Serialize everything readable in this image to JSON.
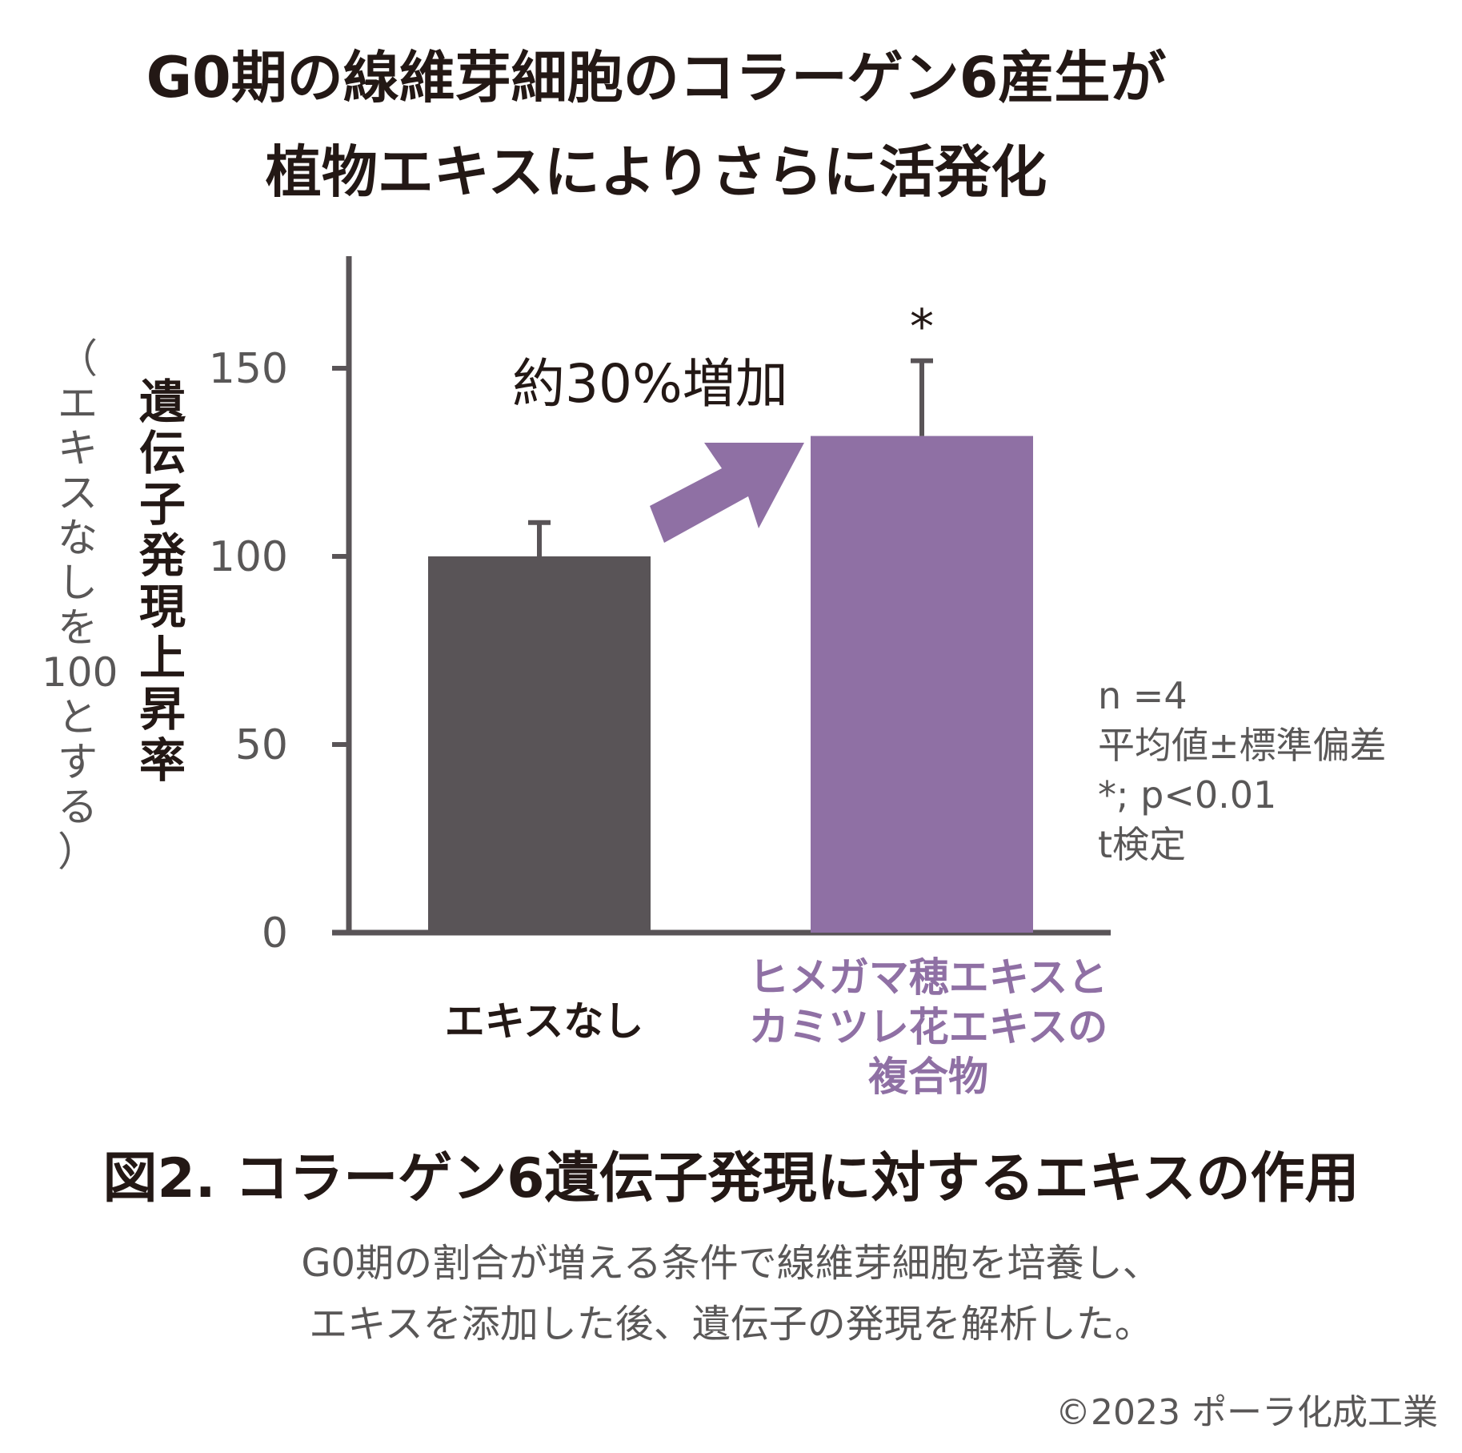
{
  "title": {
    "line1": "G0期の線維芽細胞のコラーゲン6産生が",
    "line2": "植物エキスによりさらに活発化"
  },
  "y_axis": {
    "label_chars": [
      "遺",
      "伝",
      "子",
      "発",
      "現",
      "上",
      "昇",
      "率"
    ],
    "sublabel_chars": [
      "（",
      "エ",
      "キ",
      "ス",
      "な",
      "し",
      "を",
      "100",
      "と",
      "す",
      "る",
      "）"
    ]
  },
  "annotation": "約30%増加",
  "stats_note": [
    "n =4",
    "平均値±標準偏差",
    "*; p<0.01",
    "t検定"
  ],
  "figure_title": "図2. コラーゲン6遺伝子発現に対するエキスの作用",
  "figure_caption": [
    "G0期の割合が増える条件で線維芽細胞を培養し、",
    "エキスを添加した後、遺伝子の発現を解析した。"
  ],
  "copyright": "©2023 ポーラ化成工業",
  "colors": {
    "bar_control": "#595457",
    "bar_extract": "#8f70a4",
    "axis": "#595457",
    "tick_text": "#595757"
  },
  "chart_data": {
    "type": "bar",
    "categories": [
      "エキスなし",
      "ヒメガマ穂エキスとカミツレ花エキスの複合物"
    ],
    "category_lines": [
      [
        "エキスなし"
      ],
      [
        "ヒメガマ穂エキスと",
        "カミツレ花エキスの",
        "複合物"
      ]
    ],
    "values": [
      100,
      132
    ],
    "error": [
      9,
      20
    ],
    "significance": [
      "",
      "*"
    ],
    "ylim": [
      0,
      175
    ],
    "yticks": [
      0,
      50,
      100,
      150
    ],
    "ylabel": "遺伝子発現上昇率（エキスなしを100とする）",
    "xlabel": "",
    "grid": false
  }
}
